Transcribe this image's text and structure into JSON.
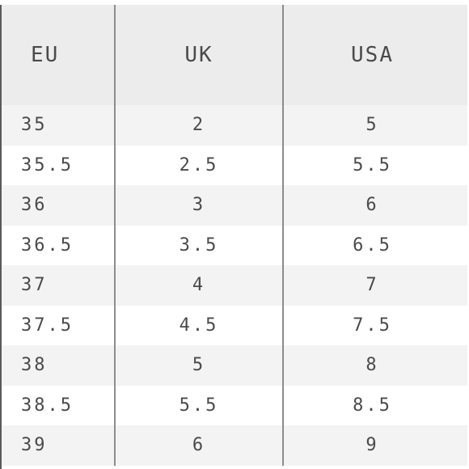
{
  "table": {
    "headers": [
      "EU",
      "UK",
      "USA"
    ],
    "rows": [
      [
        "35",
        "2",
        "5"
      ],
      [
        "35.5",
        "2.5",
        "5.5"
      ],
      [
        "36",
        "3",
        "6"
      ],
      [
        "36.5",
        "3.5",
        "6.5"
      ],
      [
        "37",
        "4",
        "7"
      ],
      [
        "37.5",
        "4.5",
        "7.5"
      ],
      [
        "38",
        "5",
        "8"
      ],
      [
        "38.5",
        "5.5",
        "8.5"
      ],
      [
        "39",
        "6",
        "9"
      ]
    ]
  },
  "colors": {
    "header_bg": "#ececec",
    "stripe_bg": "#f3f3f3",
    "text": "#4a4a4a",
    "divider": "#8c8c8c"
  }
}
